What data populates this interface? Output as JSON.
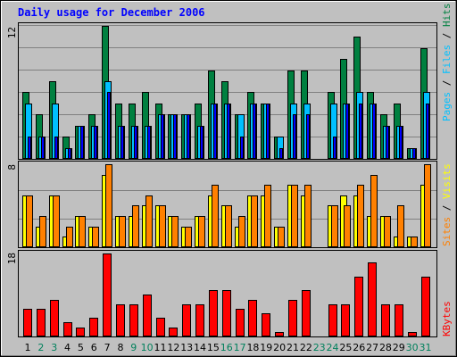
{
  "colors": {
    "hits": "#008040",
    "files": "#00c0ff",
    "pages": "#0000ff",
    "visits": "#ffff00",
    "sites": "#ff8000",
    "kbytes": "#ff0000",
    "weekend": "#00805c",
    "weekday": "#000000",
    "title": "#0000ff",
    "frame": "#c0c0c0",
    "plot": "#c0c0c0",
    "grid": "#808080"
  },
  "chart_data": {
    "type": "bar",
    "title": "Daily usage for December 2006",
    "categories": [
      "1",
      "2",
      "3",
      "4",
      "5",
      "6",
      "7",
      "8",
      "9",
      "10",
      "11",
      "12",
      "13",
      "14",
      "15",
      "16",
      "17",
      "18",
      "19",
      "20",
      "21",
      "22",
      "23",
      "24",
      "25",
      "26",
      "27",
      "28",
      "29",
      "30",
      "31"
    ],
    "weekend_days": [
      "2",
      "3",
      "9",
      "10",
      "16",
      "17",
      "23",
      "24",
      "30",
      "31"
    ],
    "panels": [
      {
        "id": "hits-files-pages",
        "ymax_label": "12",
        "ylim": [
          0,
          12
        ],
        "legend": [
          {
            "text": "Pages",
            "color": "#00c0ff"
          },
          {
            "text": " / ",
            "color": "#000000"
          },
          {
            "text": "Files",
            "color": "#00c0ff"
          },
          {
            "text": " / ",
            "color": "#000000"
          },
          {
            "text": "Hits",
            "color": "#008040"
          }
        ],
        "series": [
          {
            "name": "Hits",
            "color": "#008040",
            "values": [
              6,
              4,
              7,
              2,
              3,
              4,
              12,
              5,
              5,
              6,
              5,
              4,
              4,
              5,
              8,
              7,
              4,
              6,
              5,
              2,
              8,
              8,
              0,
              6,
              9,
              11,
              6,
              4,
              5,
              1,
              10
            ]
          },
          {
            "name": "Files",
            "color": "#00c0ff",
            "values": [
              5,
              2,
              5,
              1,
              3,
              3,
              7,
              3,
              3,
              3,
              4,
              4,
              4,
              3,
              5,
              5,
              4,
              5,
              5,
              2,
              5,
              5,
              0,
              5,
              5,
              6,
              5,
              3,
              3,
              1,
              6
            ]
          },
          {
            "name": "Pages",
            "color": "#0000ff",
            "values": [
              2,
              2,
              2,
              1,
              3,
              3,
              6,
              3,
              3,
              3,
              4,
              4,
              4,
              3,
              5,
              5,
              2,
              5,
              5,
              1,
              4,
              4,
              0,
              2,
              5,
              5,
              5,
              3,
              3,
              1,
              5
            ]
          }
        ]
      },
      {
        "id": "visits-sites",
        "ymax_label": "8",
        "ylim": [
          0,
          8
        ],
        "legend": [
          {
            "text": "Sites",
            "color": "#ff8000"
          },
          {
            "text": " / ",
            "color": "#000000"
          },
          {
            "text": "Visits",
            "color": "#ffff00"
          }
        ],
        "series": [
          {
            "name": "Visits",
            "color": "#ffff00",
            "values": [
              5,
              2,
              5,
              1,
              3,
              2,
              7,
              3,
              3,
              4,
              4,
              3,
              2,
              3,
              5,
              4,
              2,
              5,
              5,
              2,
              6,
              5,
              0,
              4,
              5,
              5,
              3,
              3,
              1,
              1,
              6
            ]
          },
          {
            "name": "Sites",
            "color": "#ff8000",
            "values": [
              5,
              3,
              5,
              2,
              3,
              2,
              8,
              3,
              4,
              5,
              4,
              3,
              2,
              3,
              6,
              4,
              3,
              5,
              6,
              2,
              6,
              6,
              0,
              4,
              4,
              6,
              7,
              3,
              4,
              1,
              8
            ]
          }
        ]
      },
      {
        "id": "kbytes",
        "ymax_label": "18",
        "ylim": [
          0,
          18
        ],
        "legend": [
          {
            "text": "KBytes",
            "color": "#ff0000"
          }
        ],
        "series": [
          {
            "name": "KBytes",
            "color": "#ff0000",
            "values": [
              6,
              6,
              8,
              3,
              2,
              4,
              18,
              7,
              7,
              9,
              4,
              2,
              7,
              7,
              10,
              10,
              6,
              8,
              5,
              1,
              8,
              10,
              0,
              7,
              7,
              13,
              16,
              7,
              7,
              1,
              13
            ]
          }
        ]
      }
    ]
  }
}
